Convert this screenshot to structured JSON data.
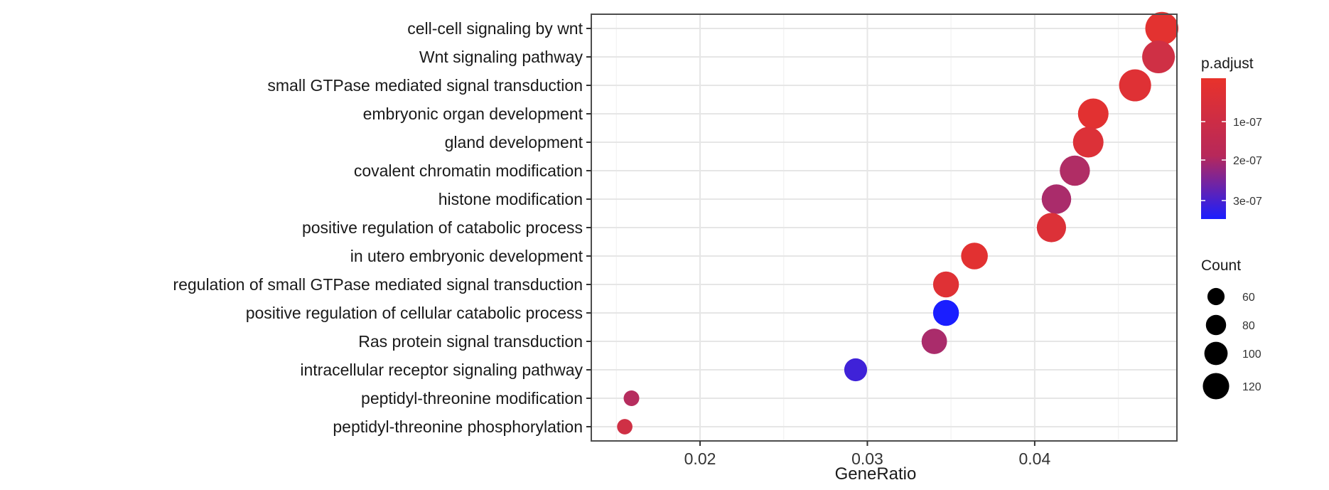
{
  "chart_data": {
    "type": "scatter",
    "xlabel": "GeneRatio",
    "ylabel": "",
    "xlim": [
      0.0135,
      0.0485
    ],
    "x_ticks": [
      "0.02",
      "0.03",
      "0.04"
    ],
    "grid": true,
    "categories": [
      "cell-cell signaling by wnt",
      "Wnt signaling pathway",
      "small GTPase mediated signal transduction",
      "embryonic organ development",
      "gland development",
      "covalent chromatin modification",
      "histone modification",
      "positive regulation of catabolic process",
      "in utero embryonic development",
      "regulation of small GTPase mediated signal transduction",
      "positive regulation of cellular catabolic process",
      "Ras protein signal transduction",
      "intracellular receptor signaling pathway",
      "peptidyl-threonine modification",
      "peptidyl-threonine phosphorylation"
    ],
    "points": [
      {
        "term": "cell-cell signaling by wnt",
        "x": 0.0476,
        "count": 122,
        "p_adjust": 1.8e-08
      },
      {
        "term": "Wnt signaling pathway",
        "x": 0.0474,
        "count": 120,
        "p_adjust": 5e-08
      },
      {
        "term": "small GTPase mediated signal transduction",
        "x": 0.046,
        "count": 117,
        "p_adjust": 2.5e-08
      },
      {
        "term": "embryonic organ development",
        "x": 0.0435,
        "count": 110,
        "p_adjust": 2e-08
      },
      {
        "term": "gland development",
        "x": 0.0432,
        "count": 110,
        "p_adjust": 3e-08
      },
      {
        "term": "covalent chromatin modification",
        "x": 0.0424,
        "count": 108,
        "p_adjust": 1e-07
      },
      {
        "term": "histone modification",
        "x": 0.0413,
        "count": 105,
        "p_adjust": 1.1e-07
      },
      {
        "term": "positive regulation of catabolic process",
        "x": 0.041,
        "count": 104,
        "p_adjust": 3e-08
      },
      {
        "term": "in utero embryonic development",
        "x": 0.0364,
        "count": 92,
        "p_adjust": 2e-08
      },
      {
        "term": "regulation of small GTPase mediated signal transduction",
        "x": 0.0347,
        "count": 88,
        "p_adjust": 2.5e-08
      },
      {
        "term": "positive regulation of cellular catabolic process",
        "x": 0.0347,
        "count": 88,
        "p_adjust": 3.4e-07
      },
      {
        "term": "Ras protein signal transduction",
        "x": 0.034,
        "count": 86,
        "p_adjust": 1.1e-07
      },
      {
        "term": "intracellular receptor signaling pathway",
        "x": 0.0293,
        "count": 74,
        "p_adjust": 2.8e-07
      },
      {
        "term": "peptidyl-threonine modification",
        "x": 0.0159,
        "count": 40,
        "p_adjust": 9e-08
      },
      {
        "term": "peptidyl-threonine phosphorylation",
        "x": 0.0155,
        "count": 39,
        "p_adjust": 5e-08
      }
    ],
    "color_legend": {
      "title": "p.adjust",
      "ticks": [
        "1e-07",
        "2e-07",
        "3e-07"
      ],
      "range": [
        1e-08,
        3.4e-07
      ],
      "low_color": "#e8322b",
      "high_color": "#1a1eff"
    },
    "size_legend": {
      "title": "Count",
      "values": [
        60,
        80,
        100,
        120
      ]
    },
    "legend_position": "right"
  }
}
